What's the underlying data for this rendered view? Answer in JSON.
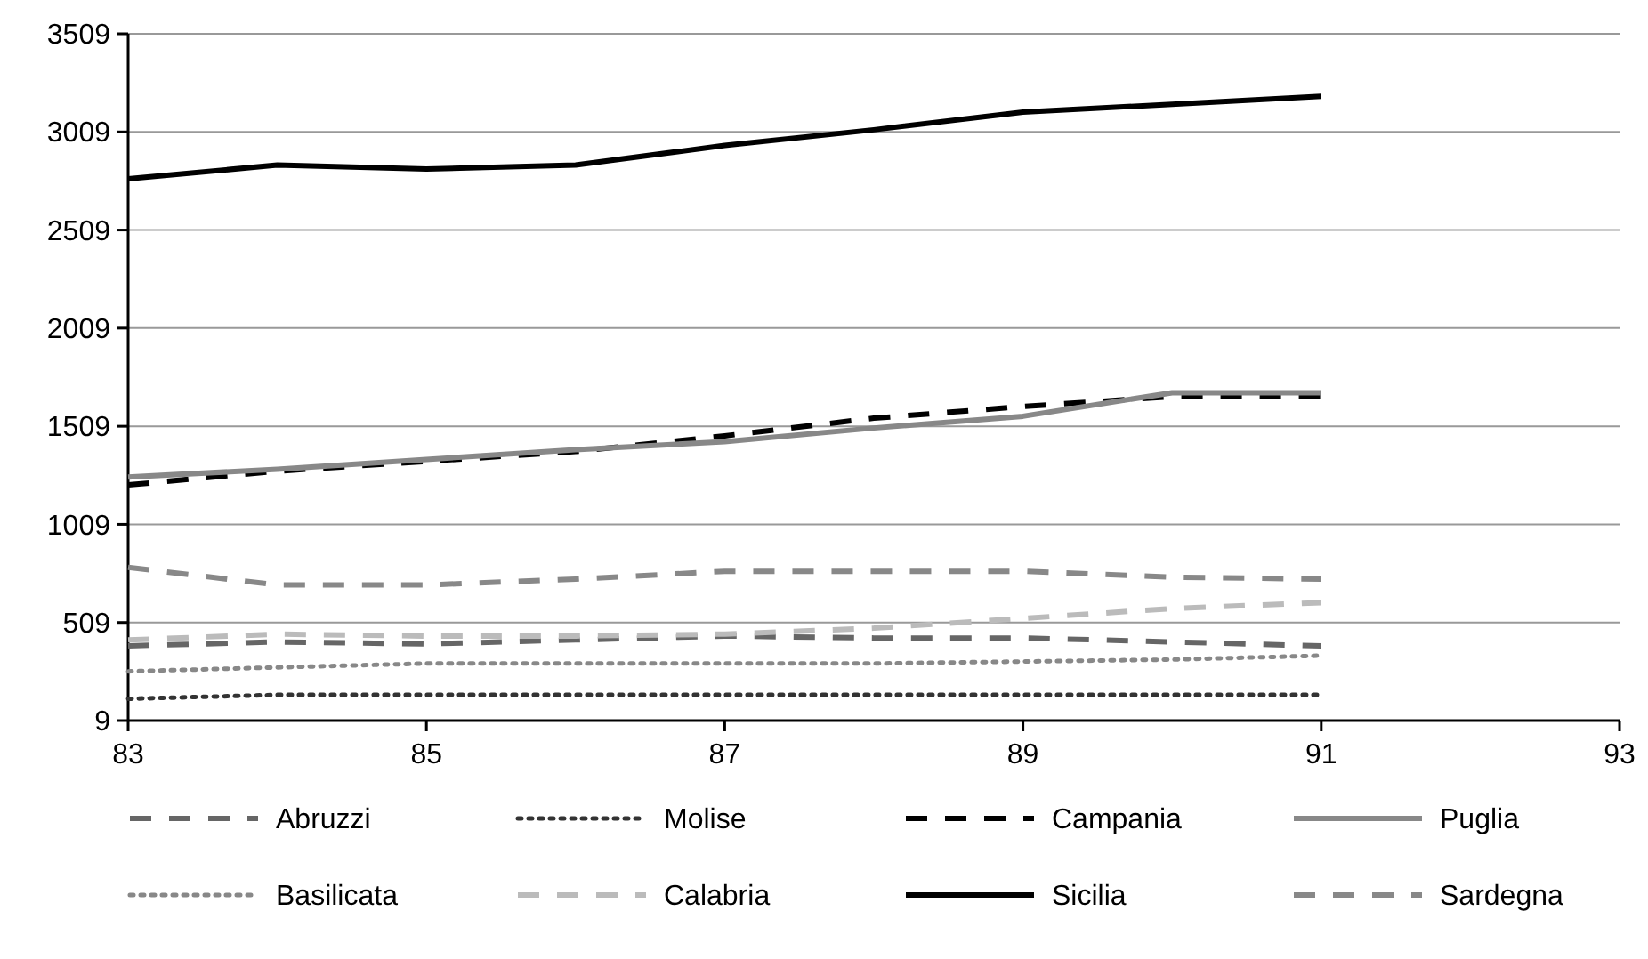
{
  "chart_data": {
    "type": "line",
    "x": [
      83,
      84,
      85,
      86,
      87,
      88,
      89,
      90,
      91
    ],
    "xlim": [
      83,
      93
    ],
    "xticks": [
      83,
      85,
      87,
      89,
      91,
      93
    ],
    "ylim": [
      9,
      3509
    ],
    "yticks": [
      9,
      509,
      1009,
      1509,
      2009,
      2509,
      3009,
      3509
    ],
    "grid": "y",
    "legend": "bottom",
    "marker": "none",
    "series": [
      {
        "name": "Abruzzi",
        "color": "#666666",
        "line_style": "dashed",
        "values": [
          390,
          410,
          400,
          420,
          440,
          430,
          430,
          410,
          390
        ]
      },
      {
        "name": "Molise",
        "color": "#333333",
        "line_style": "dotted",
        "values": [
          120,
          140,
          140,
          140,
          140,
          140,
          140,
          140,
          140
        ]
      },
      {
        "name": "Campania",
        "color": "#000000",
        "line_style": "dashed",
        "values": [
          1210,
          1280,
          1330,
          1380,
          1460,
          1550,
          1610,
          1660,
          1660
        ]
      },
      {
        "name": "Puglia",
        "color": "#888888",
        "line_style": "solid",
        "values": [
          1250,
          1290,
          1340,
          1390,
          1430,
          1500,
          1560,
          1680,
          1680
        ]
      },
      {
        "name": "Basilicata",
        "color": "#888888",
        "line_style": "dotted",
        "values": [
          260,
          280,
          300,
          300,
          300,
          300,
          310,
          320,
          340
        ]
      },
      {
        "name": "Calabria",
        "color": "#bbbbbb",
        "line_style": "dashed",
        "values": [
          420,
          450,
          440,
          440,
          450,
          480,
          530,
          580,
          610
        ]
      },
      {
        "name": "Sicilia",
        "color": "#000000",
        "line_style": "solid",
        "values": [
          2770,
          2840,
          2820,
          2840,
          2940,
          3020,
          3110,
          3150,
          3190
        ]
      },
      {
        "name": "Sardegna",
        "color": "#888888",
        "line_style": "dashed",
        "values": [
          790,
          700,
          700,
          730,
          770,
          770,
          770,
          740,
          730
        ]
      }
    ]
  }
}
